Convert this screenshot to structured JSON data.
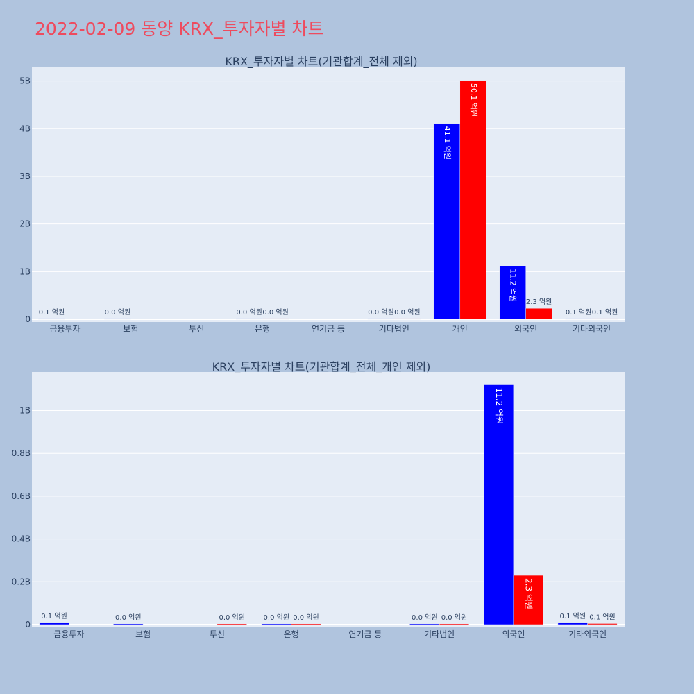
{
  "title": "2022-02-09 동양 KRX_투자자별 차트",
  "colors": {
    "buy": "#0000ff",
    "sell": "#ff0000",
    "title": "#ee4b5e",
    "plot_bg": "#e5ecf6",
    "page_bg": "#b0c4de"
  },
  "chart_data": [
    {
      "type": "bar",
      "title": "KRX_투자자별 차트(기관합계_전체 제외)",
      "categories": [
        "금융투자",
        "보험",
        "투신",
        "은행",
        "연기금 등",
        "기타법인",
        "개인",
        "외국인",
        "기타외국인"
      ],
      "series": [
        {
          "values": [
            0.01,
            0.0,
            null,
            0.0,
            null,
            0.0,
            4.11,
            1.12,
            0.01
          ],
          "labels": [
            "0.1 억원",
            "0.0 억원",
            "",
            "0.0 억원",
            "",
            "0.0 억원",
            "41.1 억원",
            "11.2 억원",
            "0.1 억원"
          ]
        },
        {
          "values": [
            null,
            null,
            null,
            0.0,
            null,
            0.0,
            5.01,
            0.23,
            0.01
          ],
          "labels": [
            "",
            "",
            "",
            "0.0 억원",
            "",
            "0.0 억원",
            "50.1 억원",
            "2.3 억원",
            "0.1 억원"
          ]
        }
      ],
      "ylim": [
        0,
        5.3
      ],
      "yticks": [
        0,
        1,
        2,
        3,
        4,
        5
      ],
      "ytick_labels": [
        "0",
        "1B",
        "2B",
        "3B",
        "4B",
        "5B"
      ],
      "grid": true
    },
    {
      "type": "bar",
      "title": "KRX_투자자별 차트(기관합계_전체_개인 제외)",
      "categories": [
        "금융투자",
        "보험",
        "투신",
        "은행",
        "연기금 등",
        "기타법인",
        "외국인",
        "기타외국인"
      ],
      "series": [
        {
          "values": [
            0.01,
            0.0,
            null,
            0.0,
            null,
            0.0,
            1.12,
            0.01
          ],
          "labels": [
            "0.1 억원",
            "0.0 억원",
            "",
            "0.0 억원",
            "",
            "0.0 억원",
            "11.2 억원",
            "0.1 억원"
          ]
        },
        {
          "values": [
            null,
            null,
            0.0,
            0.0,
            null,
            0.0,
            0.23,
            0.005
          ],
          "labels": [
            "",
            "",
            "0.0 억원",
            "0.0 억원",
            "",
            "0.0 억원",
            "2.3 억원",
            "0.1 억원"
          ]
        }
      ],
      "ylim": [
        0,
        1.18
      ],
      "yticks": [
        0,
        0.2,
        0.4,
        0.6,
        0.8,
        1.0
      ],
      "ytick_labels": [
        "0",
        "0.2B",
        "0.4B",
        "0.6B",
        "0.8B",
        "1B"
      ],
      "grid": true
    }
  ]
}
